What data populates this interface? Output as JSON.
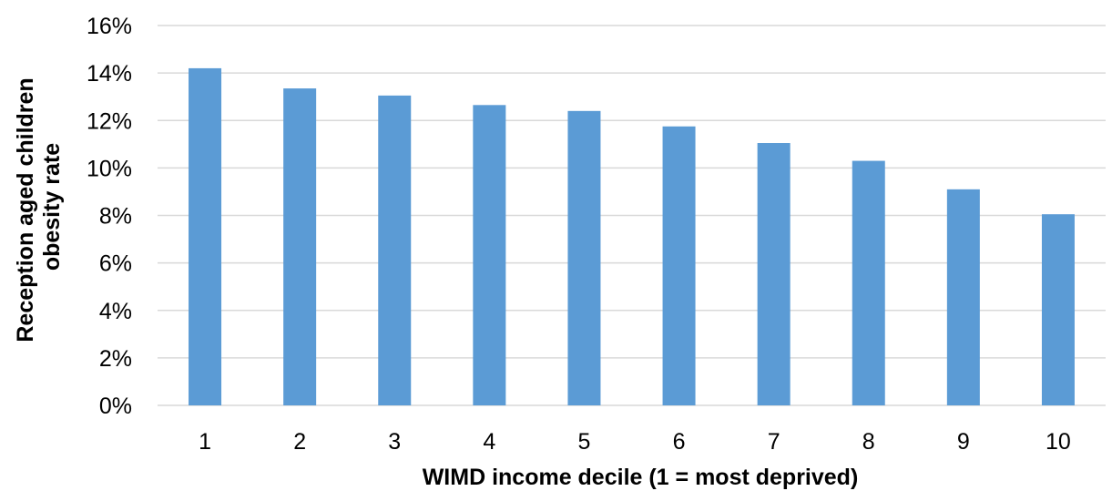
{
  "chart_data": {
    "type": "bar",
    "categories": [
      "1",
      "2",
      "3",
      "4",
      "5",
      "6",
      "7",
      "8",
      "9",
      "10"
    ],
    "values": [
      14.2,
      13.35,
      13.05,
      12.65,
      12.4,
      11.75,
      11.05,
      10.3,
      9.1,
      8.05
    ],
    "ylabel_lines": [
      "Reception aged children",
      "obesity rate"
    ],
    "xlabel": "WIMD income decile (1 = most deprived)",
    "ylim": [
      0,
      16
    ],
    "yticks": [
      0,
      2,
      4,
      6,
      8,
      10,
      12,
      14,
      16
    ],
    "ytick_labels": [
      "0%",
      "2%",
      "4%",
      "6%",
      "8%",
      "10%",
      "12%",
      "14%",
      "16%"
    ],
    "grid": true,
    "legend": "none",
    "bar_color": "#5b9bd5",
    "grid_color": "#d9d9d9"
  }
}
